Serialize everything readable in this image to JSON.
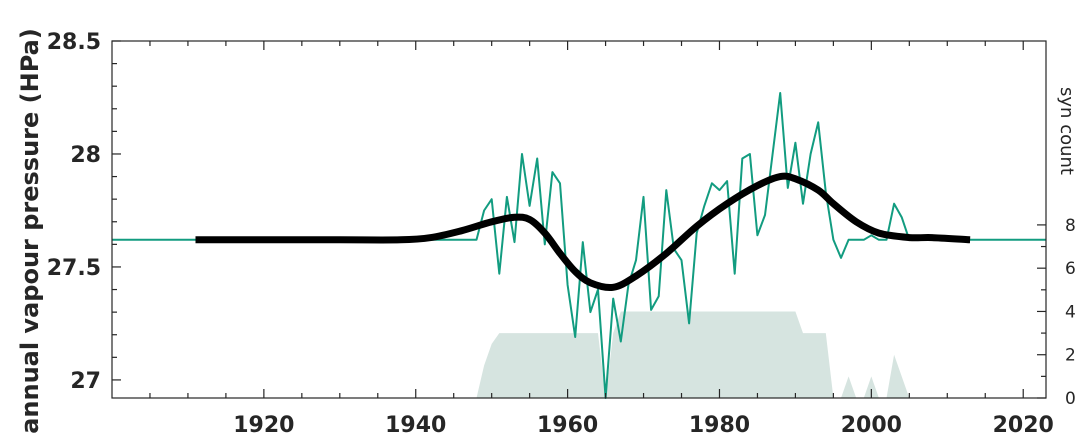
{
  "chart_data": {
    "type": "line",
    "ylabel": "annual vapour pressure (HPa)",
    "y2label": "syn count",
    "xlim": [
      1900,
      2023
    ],
    "ylim": [
      26.92,
      28.5
    ],
    "y2lim": [
      0,
      16.5
    ],
    "x_ticks": [
      "1920",
      "1940",
      "1960",
      "1980",
      "2000",
      "2020"
    ],
    "x_tick_values": [
      1920,
      1940,
      1960,
      1980,
      2000,
      2020
    ],
    "y_ticks": [
      "27",
      "27.5",
      "28",
      "28.5"
    ],
    "y_tick_values": [
      27,
      27.5,
      28,
      28.5
    ],
    "y2_ticks": [
      "0",
      "2",
      "4",
      "6",
      "8"
    ],
    "y2_tick_values": [
      0,
      2,
      4,
      6,
      8
    ],
    "grid": false,
    "colors": {
      "annual": "#129c80",
      "smooth": "#000000",
      "count": "#d6e4e0",
      "axis": "#262626"
    },
    "series": [
      {
        "id": "syn_count",
        "kind": "area",
        "axis": "right",
        "x": [
          1900,
          1948,
          1949,
          1950,
          1951,
          1952,
          1958,
          1964,
          1965,
          1966,
          1967,
          1968,
          1990,
          1991,
          1994,
          1995,
          1996,
          1997,
          1998,
          1999,
          2000,
          2001,
          2002,
          2003,
          2004,
          2005,
          2023
        ],
        "values": [
          0,
          0,
          1.5,
          2.5,
          3,
          3,
          3,
          3,
          0,
          3,
          4,
          4,
          4,
          3,
          3,
          0,
          0,
          1,
          0,
          0,
          1,
          0,
          0,
          2,
          1,
          0,
          0
        ]
      },
      {
        "id": "annual",
        "kind": "line",
        "axis": "left",
        "x": [
          1900,
          1948,
          1949,
          1950,
          1951,
          1952,
          1953,
          1954,
          1955,
          1956,
          1957,
          1958,
          1959,
          1960,
          1961,
          1962,
          1963,
          1964,
          1965,
          1966,
          1967,
          1968,
          1969,
          1970,
          1971,
          1972,
          1973,
          1974,
          1975,
          1976,
          1977,
          1978,
          1979,
          1980,
          1981,
          1982,
          1983,
          1984,
          1985,
          1986,
          1987,
          1988,
          1989,
          1990,
          1991,
          1992,
          1993,
          1994,
          1995,
          1996,
          1997,
          1998,
          1999,
          2000,
          2001,
          2002,
          2003,
          2004,
          2005,
          2023
        ],
        "values": [
          27.62,
          27.62,
          27.75,
          27.8,
          27.47,
          27.81,
          27.61,
          28.0,
          27.77,
          27.98,
          27.6,
          27.92,
          27.87,
          27.42,
          27.19,
          27.61,
          27.3,
          27.4,
          26.92,
          27.36,
          27.17,
          27.42,
          27.53,
          27.81,
          27.31,
          27.37,
          27.84,
          27.58,
          27.53,
          27.25,
          27.65,
          27.77,
          27.87,
          27.84,
          27.88,
          27.47,
          27.98,
          28.0,
          27.64,
          27.73,
          28.0,
          28.27,
          27.85,
          28.05,
          27.78,
          28.0,
          28.14,
          27.83,
          27.62,
          27.54,
          27.62,
          27.62,
          27.62,
          27.64,
          27.62,
          27.62,
          27.78,
          27.72,
          27.62,
          27.62
        ]
      },
      {
        "id": "smooth",
        "kind": "line",
        "axis": "left",
        "x": [
          1911,
          1920,
          1930,
          1938,
          1942,
          1946,
          1950,
          1953,
          1955,
          1957,
          1959,
          1961,
          1963,
          1966,
          1969,
          1973,
          1977,
          1981,
          1985,
          1988,
          1990,
          1993,
          1995,
          1998,
          2001,
          2005,
          2008,
          2013
        ],
        "values": [
          27.62,
          27.62,
          27.62,
          27.62,
          27.63,
          27.66,
          27.7,
          27.72,
          27.71,
          27.65,
          27.56,
          27.48,
          27.43,
          27.41,
          27.46,
          27.56,
          27.68,
          27.78,
          27.86,
          27.9,
          27.89,
          27.84,
          27.78,
          27.7,
          27.65,
          27.63,
          27.63,
          27.62
        ]
      }
    ]
  }
}
